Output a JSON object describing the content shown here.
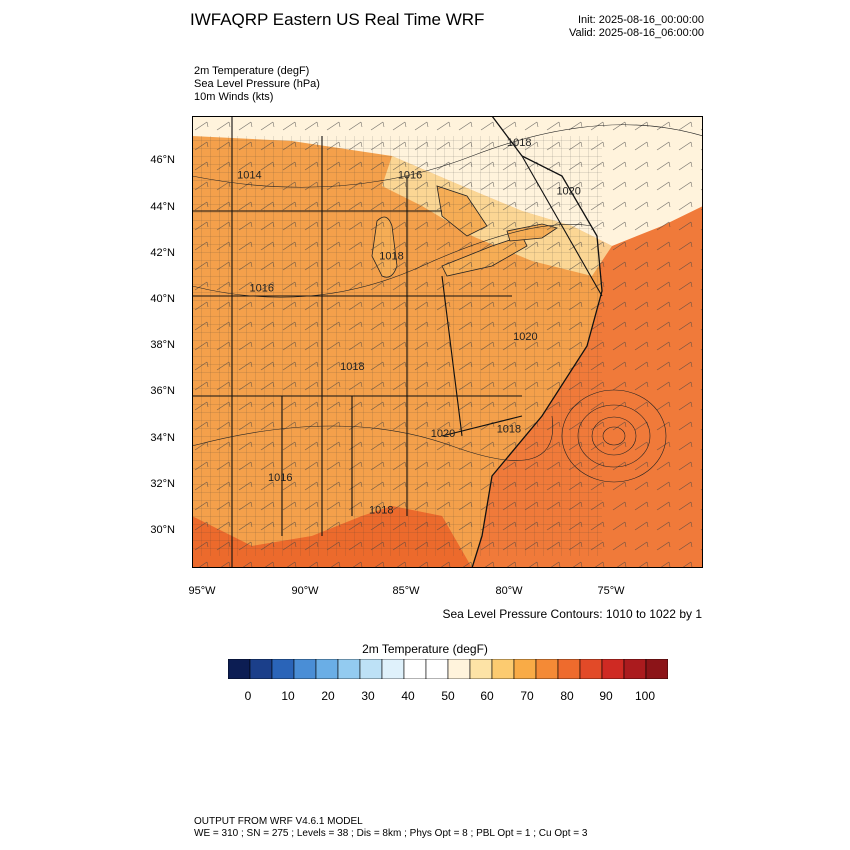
{
  "header": {
    "title": "IWFAQRP Eastern US Real Time WRF",
    "init": "Init: 2025-08-16_00:00:00",
    "valid": "Valid: 2025-08-16_06:00:00"
  },
  "fields": [
    "2m Temperature   (degF)",
    "Sea Level Pressure   (hPa)",
    "10m Winds   (kts)"
  ],
  "map": {
    "lat_ticks": [
      "46°N",
      "44°N",
      "42°N",
      "40°N",
      "38°N",
      "36°N",
      "34°N",
      "32°N",
      "30°N"
    ],
    "lon_ticks": [
      "95°W",
      "90°W",
      "85°W",
      "80°W",
      "75°W"
    ],
    "pressure_labels": [
      {
        "text": "1018",
        "lon": -79.6,
        "lat": 46.6
      },
      {
        "text": "1014",
        "lon": -92.7,
        "lat": 45.2
      },
      {
        "text": "1016",
        "lon": -84.9,
        "lat": 45.2
      },
      {
        "text": "1020",
        "lon": -77.2,
        "lat": 44.5
      },
      {
        "text": "1018",
        "lon": -85.8,
        "lat": 41.7
      },
      {
        "text": "1016",
        "lon": -92.1,
        "lat": 40.3
      },
      {
        "text": "1020",
        "lon": -79.3,
        "lat": 38.2
      },
      {
        "text": "1018",
        "lon": -87.7,
        "lat": 36.9
      },
      {
        "text": "1020",
        "lon": -83.3,
        "lat": 34.0
      },
      {
        "text": "1018",
        "lon": -80.1,
        "lat": 34.2
      },
      {
        "text": "1016",
        "lon": -91.2,
        "lat": 32.1
      },
      {
        "text": "1018",
        "lon": -86.3,
        "lat": 30.7
      }
    ],
    "low_center": {
      "lon": -75.2,
      "lat": 34.0
    },
    "contour_note": "Sea Level Pressure Contours: 1010 to 1022 by 1"
  },
  "colorbar": {
    "title": "2m Temperature  (degF)",
    "labels": [
      "0",
      "10",
      "20",
      "30",
      "40",
      "50",
      "60",
      "70",
      "80",
      "90",
      "100"
    ],
    "colors": [
      "#0c1d53",
      "#1b3f8a",
      "#2a64b8",
      "#4a8ed6",
      "#6aaee6",
      "#93cbf0",
      "#bde1f6",
      "#dff1fb",
      "#ffffff",
      "#ffffff",
      "#fff3dc",
      "#fde3a6",
      "#fccb70",
      "#f9ab46",
      "#f48a36",
      "#ee6b2d",
      "#e24a28",
      "#cf2a23",
      "#ab1b1e",
      "#8c1418"
    ]
  },
  "footer": {
    "line1": "OUTPUT FROM WRF V4.6.1 MODEL",
    "line2": "WE = 310 ; SN = 275 ; Levels = 38 ; Dis = 8km ; Phys Opt = 8 ; PBL Opt = 1 ; Cu Opt = 3"
  }
}
